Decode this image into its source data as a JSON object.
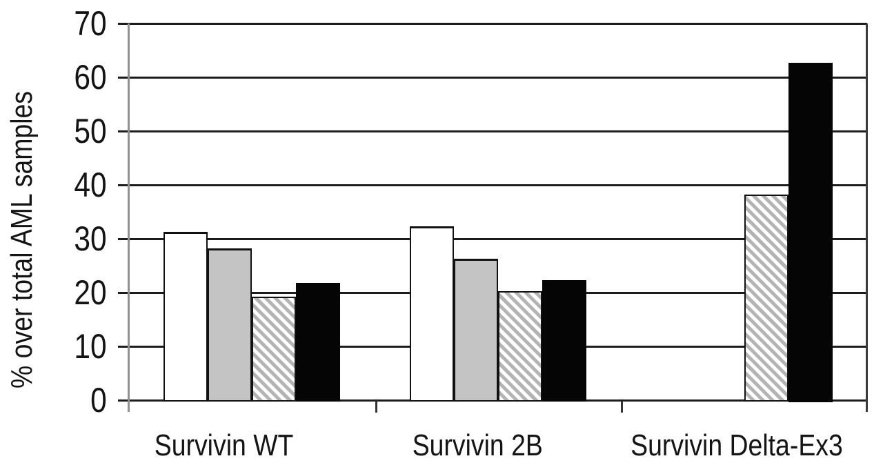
{
  "chart_data": {
    "type": "bar",
    "title": "",
    "ylabel": "% over total AML samples",
    "xlabel": "",
    "categories": [
      "Survivin WT",
      "Survivin 2B",
      "Survivin Delta-Ex3"
    ],
    "series": [
      {
        "name": "white",
        "fill": "white",
        "values": [
          31,
          32,
          0
        ]
      },
      {
        "name": "gray",
        "fill": "gray",
        "values": [
          28,
          26,
          0
        ]
      },
      {
        "name": "hatched",
        "fill": "hatched-diagonal",
        "values": [
          19,
          20,
          38
        ]
      },
      {
        "name": "black",
        "fill": "black",
        "values": [
          21.5,
          22,
          62.5
        ]
      }
    ],
    "ylim": [
      0,
      70
    ],
    "yticks": [
      0,
      10,
      20,
      30,
      40,
      50,
      60,
      70
    ],
    "grid": "horizontal",
    "legend_position": "none",
    "colors": {
      "background": "#ffffff",
      "bar_white": "#ffffff",
      "bar_gray": "#c4c4c4",
      "hatch_stripe": "#b4b4b4",
      "bar_black": "#050505",
      "bar_border": "#111111",
      "gridline": "#1c1c1c",
      "y_axis_line": "#919191"
    }
  }
}
